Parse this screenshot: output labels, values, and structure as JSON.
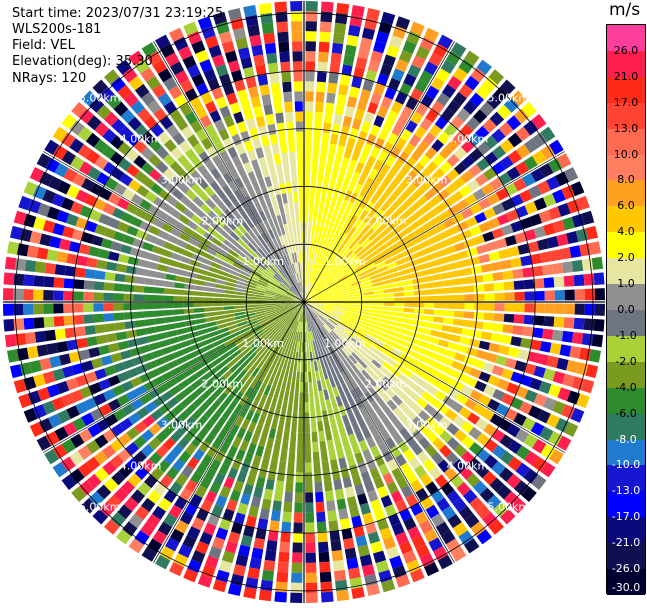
{
  "header": {
    "start_time": "Start time: 2023/07/31 23:19:25",
    "instrument": "WLS200s-181",
    "field": "Field: VEL",
    "elevation": "Elevation(deg): 35.30",
    "nrays": "NRays: 120"
  },
  "colorbar": {
    "unit": "m/s",
    "ticks": [
      "26.0",
      "21.0",
      "17.0",
      "13.0",
      "10.0",
      "8.0",
      "6.0",
      "4.0",
      "2.0",
      "1.0",
      "0.0",
      "-1.0",
      "-2.0",
      "-4.0",
      "-6.0",
      "-8.0",
      "-10.0",
      "-13.0",
      "-17.0",
      "-21.0",
      "-26.0",
      "-30.0"
    ],
    "colors": [
      "#ff3d9a",
      "#ff1f4f",
      "#ff2a1a",
      "#ff4433",
      "#ff6a50",
      "#ff7f60",
      "#ffa020",
      "#ffc800",
      "#ffff00",
      "#e6e6a0",
      "#909090",
      "#6e7480",
      "#a8d238",
      "#7a9a20",
      "#2e8b2e",
      "#2f7a60",
      "#1f7ad0",
      "#1616d0",
      "#0000ff",
      "#0a0a7a",
      "#101050",
      "#000030"
    ]
  },
  "chart_data": {
    "type": "ppi",
    "field": "VEL",
    "units": "m/s",
    "n_rays": 120,
    "elevation_deg": 35.3,
    "range_ring_labels": [
      "1.00km",
      "2.00km",
      "3.00km",
      "4.00km",
      "5.00km"
    ],
    "range_rings_km": [
      1,
      2,
      3,
      4,
      5
    ],
    "max_range_km": 5,
    "velocity_pattern": "positive (yellow-orange-red) toward north and east; negative (green) toward south and west; noisy high-magnitude values at far ranges"
  }
}
